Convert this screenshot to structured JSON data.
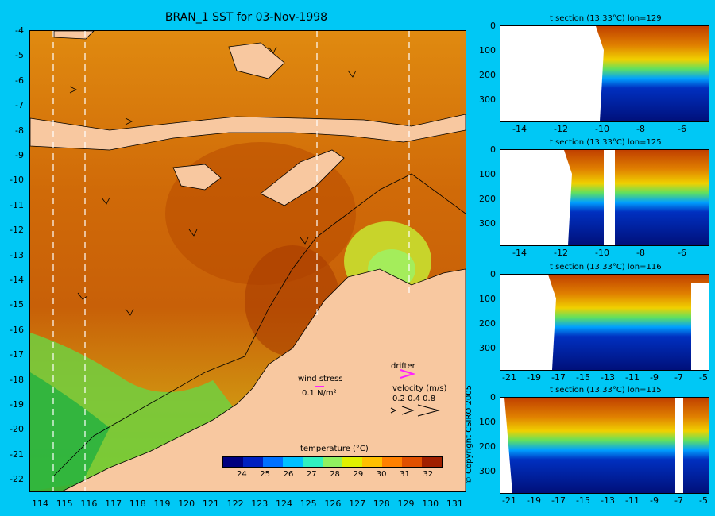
{
  "map": {
    "title": "BRAN_1 SST for 03-Nov-1998",
    "lat_ticks": [
      "-4",
      "-5",
      "-6",
      "-7",
      "-8",
      "-9",
      "-10",
      "-11",
      "-12",
      "-13",
      "-14",
      "-15",
      "-16",
      "-17",
      "-18",
      "-19",
      "-20",
      "-21",
      "-22"
    ],
    "lon_ticks": [
      "114",
      "115",
      "116",
      "117",
      "118",
      "119",
      "120",
      "121",
      "122",
      "123",
      "124",
      "125",
      "126",
      "127",
      "128",
      "129",
      "130",
      "131"
    ],
    "colorbar": {
      "label": "temperature (°C)",
      "ticks": [
        "24",
        "25",
        "26",
        "27",
        "28",
        "29",
        "30",
        "31",
        "32"
      ],
      "colors": [
        "#00007f",
        "#0020c0",
        "#0070ff",
        "#00c0ff",
        "#30f0c0",
        "#90f060",
        "#e0f000",
        "#ffc000",
        "#ff8000",
        "#e05000",
        "#a02000"
      ]
    },
    "wind_legend": {
      "label": "wind stress",
      "value": "0.1 N/m²"
    },
    "drifter_label": "drifter",
    "velocity_legend": {
      "label": "velocity (m/s)",
      "values": "0.2 0.4 0.8"
    },
    "land_color": "#f8c8a0"
  },
  "sections": [
    {
      "title": "t section (13.33°C) lon=129",
      "y_ticks": [
        "0",
        "100",
        "200",
        "300"
      ],
      "x_ticks": [
        "-14",
        "-12",
        "-10",
        "-8",
        "-6"
      ]
    },
    {
      "title": "t section (13.33°C) lon=125",
      "y_ticks": [
        "0",
        "100",
        "200",
        "300"
      ],
      "x_ticks": [
        "-14",
        "-12",
        "-10",
        "-8",
        "-6"
      ]
    },
    {
      "title": "t section (13.33°C) lon=116",
      "y_ticks": [
        "0",
        "100",
        "200",
        "300"
      ],
      "x_ticks": [
        "-21",
        "-19",
        "-17",
        "-15",
        "-13",
        "-11",
        "-9",
        "-7",
        "-5"
      ]
    },
    {
      "title": "t section (13.33°C) lon=115",
      "y_ticks": [
        "0",
        "100",
        "200",
        "300"
      ],
      "x_ticks": [
        "-21",
        "-19",
        "-17",
        "-15",
        "-13",
        "-11",
        "-9",
        "-7",
        "-5"
      ]
    }
  ],
  "copyright": "© Copyright CSIRO 2005"
}
